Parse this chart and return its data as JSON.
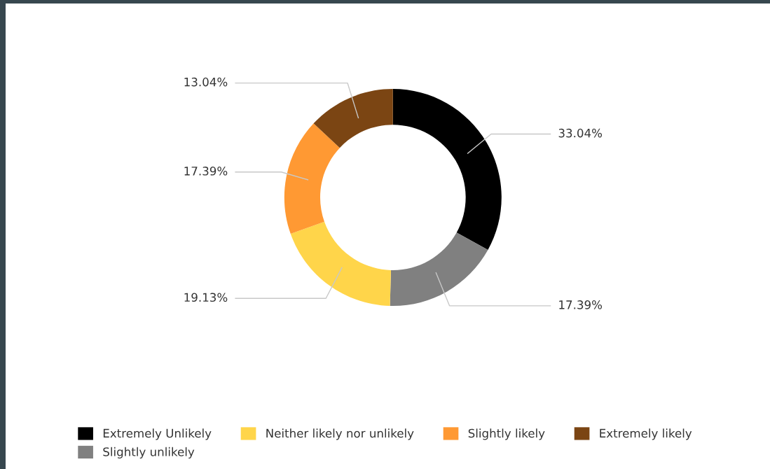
{
  "chart_data": {
    "type": "donut",
    "categories": [
      "Extremely Unlikely",
      "Slightly unlikely",
      "Neither likely nor unlikely",
      "Slightly likely",
      "Extremely likely"
    ],
    "values": [
      33.04,
      17.39,
      19.13,
      17.39,
      13.04
    ],
    "colors": [
      "#000000",
      "#808080",
      "#ffd54a",
      "#ff9933",
      "#7b4513"
    ],
    "value_labels": [
      "33.04%",
      "17.39%",
      "19.13%",
      "17.39%",
      "13.04%"
    ],
    "legend": "bottom"
  }
}
